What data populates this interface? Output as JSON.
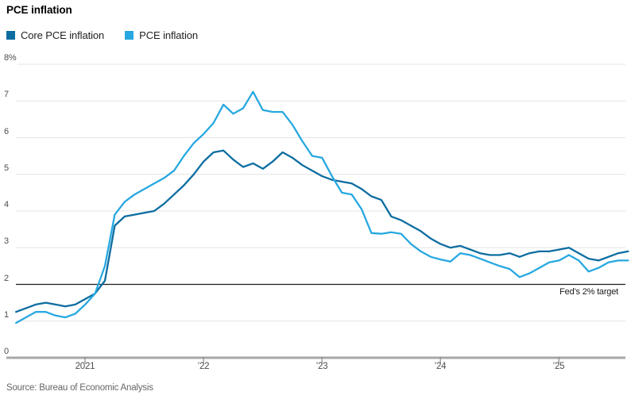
{
  "header": {
    "title": "PCE inflation"
  },
  "legend": {
    "items": [
      {
        "label": "Core PCE inflation",
        "color": "#0d6da1",
        "swatch_icon": "square-swatch"
      },
      {
        "label": "PCE inflation",
        "color": "#27a8e0",
        "swatch_icon": "square-swatch"
      }
    ]
  },
  "source": {
    "text": "Source: Bureau of Economic Analysis"
  },
  "chart_data": {
    "type": "line",
    "title": "PCE inflation",
    "unit": "percent, year-over-year",
    "frequency": "monthly",
    "x_start": "2020-06",
    "x_end": "2025-08",
    "x_tick_labels": [
      "2021",
      "’22",
      "’23",
      "’24",
      "’25"
    ],
    "y_ticks": [
      {
        "value": 8,
        "label": "8%"
      },
      {
        "value": 7,
        "label": "7"
      },
      {
        "value": 6,
        "label": "6"
      },
      {
        "value": 5,
        "label": "5"
      },
      {
        "value": 4,
        "label": "4"
      },
      {
        "value": 3,
        "label": "3"
      },
      {
        "value": 2,
        "label": "2"
      },
      {
        "value": 1,
        "label": "1"
      },
      {
        "value": 0,
        "label": "0"
      }
    ],
    "ylim": [
      0,
      8
    ],
    "grid": true,
    "legend_position": "top-left",
    "reference_line": {
      "value": 2,
      "label": "Fed’s 2% target",
      "color": "#1a1a1a"
    },
    "axis_colors": {
      "gridline": "#e4e4e4",
      "baseline": "#a7a7a7",
      "tick": "#8c8c8c"
    },
    "series": [
      {
        "name": "Core PCE inflation",
        "color": "#0d6da1",
        "values": [
          1.25,
          1.35,
          1.45,
          1.5,
          1.45,
          1.4,
          1.45,
          1.6,
          1.75,
          2.1,
          3.6,
          3.85,
          3.9,
          3.95,
          4.0,
          4.2,
          4.45,
          4.7,
          5.0,
          5.35,
          5.6,
          5.65,
          5.4,
          5.2,
          5.3,
          5.15,
          5.35,
          5.6,
          5.45,
          5.25,
          5.1,
          4.95,
          4.85,
          4.8,
          4.75,
          4.6,
          4.4,
          4.3,
          3.85,
          3.75,
          3.6,
          3.45,
          3.25,
          3.1,
          3.0,
          3.05,
          2.95,
          2.85,
          2.8,
          2.8,
          2.85,
          2.75,
          2.85,
          2.9,
          2.9,
          2.95,
          3.0,
          2.85,
          2.7,
          2.65,
          2.75,
          2.85,
          2.9
        ]
      },
      {
        "name": "PCE inflation",
        "color": "#27a8e0",
        "values": [
          0.95,
          1.1,
          1.25,
          1.25,
          1.15,
          1.1,
          1.2,
          1.45,
          1.75,
          2.5,
          3.9,
          4.25,
          4.45,
          4.6,
          4.75,
          4.9,
          5.1,
          5.5,
          5.85,
          6.1,
          6.4,
          6.9,
          6.65,
          6.8,
          7.25,
          6.75,
          6.7,
          6.7,
          6.35,
          5.9,
          5.5,
          5.45,
          4.95,
          4.5,
          4.45,
          4.05,
          3.4,
          3.38,
          3.42,
          3.38,
          3.1,
          2.9,
          2.75,
          2.68,
          2.62,
          2.85,
          2.8,
          2.7,
          2.6,
          2.5,
          2.42,
          2.2,
          2.3,
          2.45,
          2.6,
          2.65,
          2.8,
          2.65,
          2.35,
          2.45,
          2.6,
          2.65,
          2.65
        ]
      }
    ]
  }
}
